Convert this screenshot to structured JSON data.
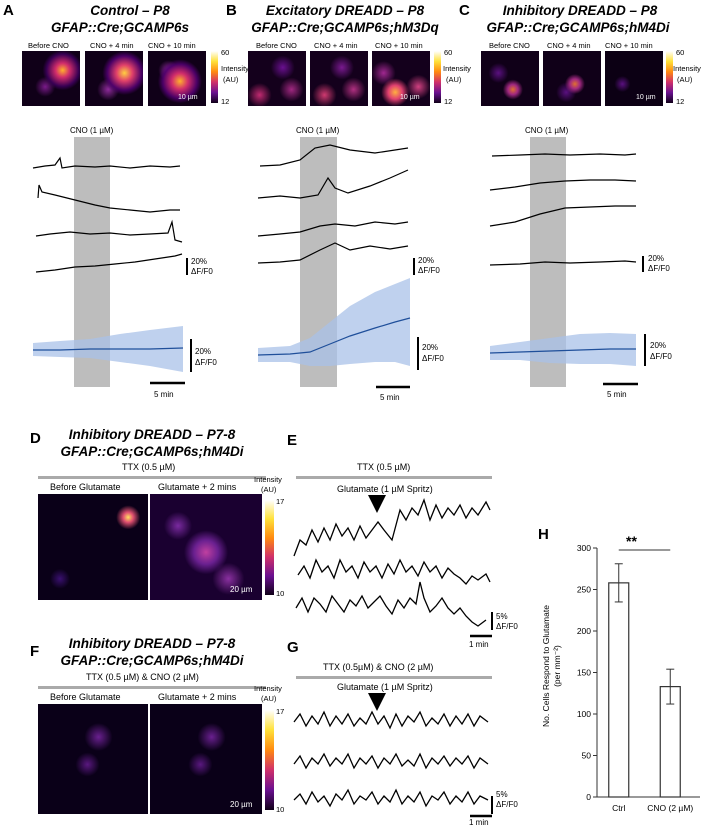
{
  "panels": {
    "A": {
      "letter": "A",
      "title1": "Control – P8",
      "title2": "GFAP::Cre;GCAMP6s",
      "img_labels": [
        "Before CNO",
        "CNO + 4 min",
        "CNO + 10 min"
      ],
      "scale": "10 µm",
      "cbar_max": "60",
      "cbar_min": "12",
      "cbar_label1": "Intensity",
      "cbar_label2": "(AU)",
      "cno": "CNO (1 µM)",
      "scale_y": "20%",
      "scale_y2": "ΔF/F0",
      "time": "5 min"
    },
    "B": {
      "letter": "B",
      "title1": "Excitatory DREADD – P8",
      "title2": "GFAP::Cre;GCAMP6s;hM3Dq",
      "img_labels": [
        "Before CNO",
        "CNO + 4 min",
        "CNO + 10 min"
      ],
      "scale": "10 µm",
      "cbar_max": "60",
      "cbar_min": "12",
      "cbar_label1": "Intensity",
      "cbar_label2": "(AU)",
      "cno": "CNO (1 µM)",
      "scale_y": "20%",
      "scale_y2": "ΔF/F0",
      "time": "5 min"
    },
    "C": {
      "letter": "C",
      "title1": "Inhibitory DREADD – P8",
      "title2": "GFAP::Cre;GCAMP6s;hM4Di",
      "img_labels": [
        "Before CNO",
        "CNO + 4 min",
        "CNO + 10 min"
      ],
      "scale": "10 µm",
      "cbar_max": "60",
      "cbar_min": "12",
      "cbar_label1": "Intensity",
      "cbar_label2": "(AU)",
      "cno": "CNO (1 µM)",
      "scale_y": "20%",
      "scale_y2": "ΔF/F0",
      "time": "5 min"
    },
    "D": {
      "letter": "D",
      "title1": "Inhibitory DREADD – P7-8",
      "title2": "GFAP::Cre;GCAMP6s;hM4Di",
      "treatment": "TTX (0.5 µM)",
      "img_labels": [
        "Before Glutamate",
        "Glutamate + 2 mins"
      ],
      "scale": "20 µm",
      "cbar_max": "17",
      "cbar_min": "10",
      "cbar_label1": "Intensity",
      "cbar_label2": "(AU)"
    },
    "E": {
      "letter": "E",
      "treatment": "TTX (0.5 µM)",
      "stim": "Glutamate (1 µM Spritz)",
      "scale_y": "5%",
      "scale_y2": "ΔF/F0",
      "time": "1 min"
    },
    "F": {
      "letter": "F",
      "title1": "Inhibitory DREADD – P7-8",
      "title2": "GFAP::Cre;GCAMP6s;hM4Di",
      "treatment": "TTX (0.5 µM) & CNO (2 µM)",
      "img_labels": [
        "Before Glutamate",
        "Glutamate + 2 mins"
      ],
      "scale": "20 µm",
      "cbar_max": "17",
      "cbar_min": "10",
      "cbar_label1": "Intensity",
      "cbar_label2": "(AU)"
    },
    "G": {
      "letter": "G",
      "treatment": "TTX (0.5µM) & CNO (2 µM)",
      "stim": "Glutamate (1 µM Spritz)",
      "scale_y": "5%",
      "scale_y2": "ΔF/F0",
      "time": "1 min"
    },
    "H": {
      "letter": "H",
      "significance": "**",
      "ylabel1": "No. Cells Respond to Glutamate",
      "ylabel2": "(per mm⁻²)"
    }
  },
  "chart_data": {
    "type": "bar",
    "categories": [
      "Ctrl",
      "CNO (2 µM)"
    ],
    "values": [
      258,
      133
    ],
    "errors": [
      23,
      21
    ],
    "ylim": [
      0,
      300
    ],
    "yticks": [
      "0",
      "50",
      "100",
      "150",
      "200",
      "250",
      "300"
    ],
    "ylabel": "No. Cells Respond to Glutamate (per mm⁻²)",
    "significance": "**"
  },
  "colors": {
    "trace": "#000000",
    "mean": "#1f4f9a",
    "band": "#a9c1e8",
    "cno_block": "#bdbdbd",
    "bar_line": "#333333"
  }
}
